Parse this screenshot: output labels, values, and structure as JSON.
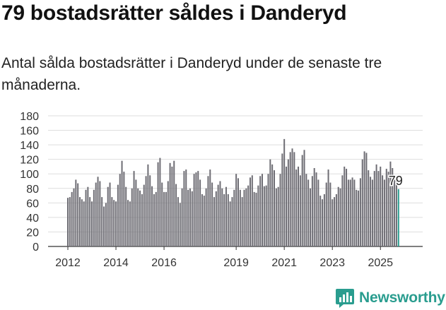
{
  "header": {
    "title": "79 bostadsrätter såldes i Danderyd",
    "subtitle": "Antal sålda bostadsrätter i Danderyd under de senaste tre månaderna."
  },
  "brand": {
    "name": "Newsworthy",
    "icon": "newsworthy-logo-icon",
    "color": "#2a9d8f"
  },
  "chart_data": {
    "type": "bar",
    "title": "",
    "xlabel": "",
    "ylabel": "",
    "ylim": [
      0,
      180
    ],
    "yticks": [
      "0",
      "20",
      "40",
      "60",
      "80",
      "100",
      "120",
      "140",
      "160",
      "180"
    ],
    "xticks": [
      {
        "label": "2012",
        "at": "2012-01"
      },
      {
        "label": "2014",
        "at": "2014-01"
      },
      {
        "label": "2016",
        "at": "2016-01"
      },
      {
        "label": "2019",
        "at": "2019-01"
      },
      {
        "label": "2021",
        "at": "2021-01"
      },
      {
        "label": "2023",
        "at": "2023-01"
      },
      {
        "label": "2025",
        "at": "2025-01"
      }
    ],
    "grid": true,
    "bar_color": "#6e6d74",
    "highlight_color": "#2a9d8f",
    "highlight_label": "79",
    "start": "2012-01",
    "values": [
      67,
      68,
      75,
      80,
      92,
      87,
      68,
      65,
      62,
      78,
      82,
      68,
      62,
      78,
      88,
      96,
      90,
      68,
      55,
      60,
      82,
      88,
      68,
      64,
      62,
      85,
      100,
      118,
      103,
      82,
      64,
      62,
      80,
      104,
      92,
      80,
      77,
      72,
      85,
      97,
      113,
      98,
      83,
      72,
      75,
      116,
      122,
      88,
      75,
      75,
      90,
      115,
      110,
      118,
      86,
      68,
      60,
      80,
      104,
      106,
      78,
      80,
      76,
      100,
      102,
      104,
      92,
      72,
      70,
      80,
      97,
      106,
      88,
      68,
      76,
      85,
      90,
      80,
      72,
      82,
      72,
      62,
      68,
      78,
      100,
      94,
      78,
      68,
      78,
      80,
      84,
      95,
      98,
      75,
      74,
      84,
      97,
      100,
      83,
      84,
      100,
      120,
      113,
      105,
      80,
      82,
      100,
      128,
      148,
      110,
      120,
      130,
      135,
      130,
      106,
      110,
      98,
      126,
      133,
      100,
      92,
      80,
      97,
      108,
      102,
      92,
      70,
      65,
      72,
      88,
      106,
      88,
      65,
      68,
      72,
      82,
      80,
      98,
      110,
      107,
      92,
      92,
      95,
      92,
      78,
      77,
      94,
      120,
      131,
      129,
      105,
      96,
      92,
      104,
      113,
      104,
      110,
      98,
      92,
      107,
      103,
      117,
      108,
      92,
      90,
      79
    ]
  }
}
